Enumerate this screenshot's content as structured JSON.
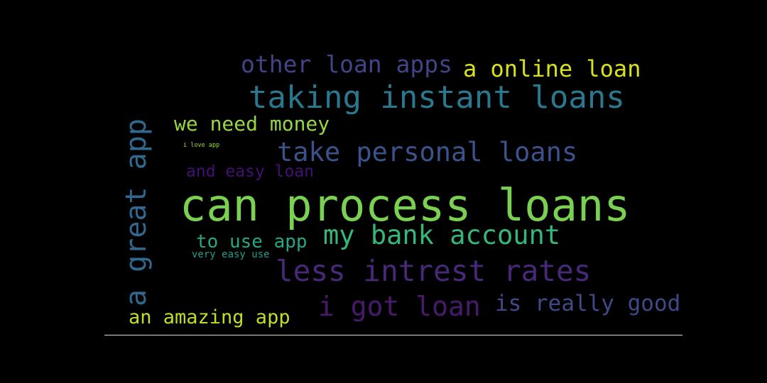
{
  "words": [
    {
      "id": "w1",
      "text": "can process loans",
      "color": "#7ad151"
    },
    {
      "id": "w2",
      "text": "taking instant loans",
      "color": "#2a788e"
    },
    {
      "id": "w3",
      "text": "less intrest rates",
      "color": "#482878"
    },
    {
      "id": "w4",
      "text": "a great app",
      "color": "#31688e"
    },
    {
      "id": "w5",
      "text": "take personal loans",
      "color": "#3b528b"
    },
    {
      "id": "w6",
      "text": "my bank account",
      "color": "#35b779"
    },
    {
      "id": "w7",
      "text": "i got loan",
      "color": "#481a6c"
    },
    {
      "id": "w8",
      "text": "other loan apps",
      "color": "#414487"
    },
    {
      "id": "w9",
      "text": "a online loan",
      "color": "#d8e219"
    },
    {
      "id": "w10",
      "text": "is really good",
      "color": "#3e4a89"
    },
    {
      "id": "w11",
      "text": "we need money",
      "color": "#95d840"
    },
    {
      "id": "w12",
      "text": "an amazing app",
      "color": "#bddf26"
    },
    {
      "id": "w13",
      "text": "to use app",
      "color": "#22a884"
    },
    {
      "id": "w14",
      "text": "and easy loan",
      "color": "#440f76"
    },
    {
      "id": "w15",
      "text": "very easy use",
      "color": "#1f9e89"
    },
    {
      "id": "w16",
      "text": "i love app",
      "color": "#9fda3a"
    }
  ]
}
